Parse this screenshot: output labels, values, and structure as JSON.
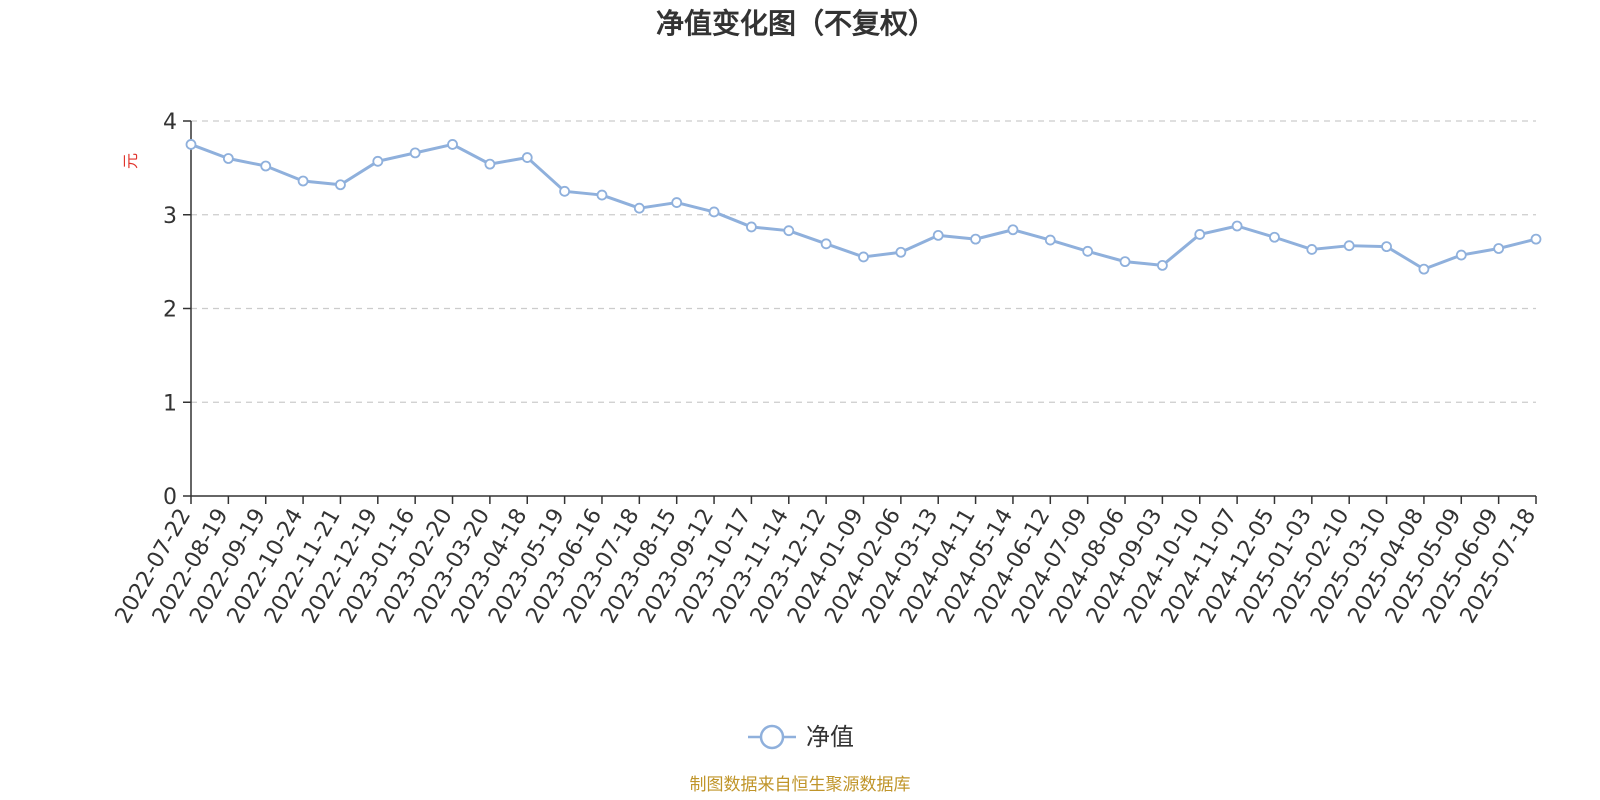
{
  "chart_data": {
    "type": "line",
    "title": "净值变化图（不复权）",
    "ylabel": "元",
    "ylim": [
      0,
      4
    ],
    "yticks": [
      "0",
      "1",
      "2",
      "3",
      "4"
    ],
    "grid": true,
    "legend_position": "bottom",
    "x": [
      "2022-07-22",
      "2022-08-19",
      "2022-09-19",
      "2022-10-24",
      "2022-11-21",
      "2022-12-19",
      "2023-01-16",
      "2023-02-20",
      "2023-03-20",
      "2023-04-18",
      "2023-05-19",
      "2023-06-16",
      "2023-07-18",
      "2023-08-15",
      "2023-09-12",
      "2023-10-17",
      "2023-11-14",
      "2023-12-12",
      "2024-01-09",
      "2024-02-06",
      "2024-03-13",
      "2024-04-11",
      "2024-05-14",
      "2024-06-12",
      "2024-07-09",
      "2024-08-06",
      "2024-09-03",
      "2024-10-10",
      "2024-11-07",
      "2024-12-05",
      "2025-01-03",
      "2025-02-10",
      "2025-03-10",
      "2025-04-08",
      "2025-05-09",
      "2025-06-09",
      "2025-07-18"
    ],
    "series": [
      {
        "name": "净值",
        "color": "#8fb0dc",
        "values": [
          3.75,
          3.6,
          3.52,
          3.36,
          3.32,
          3.57,
          3.66,
          3.75,
          3.54,
          3.61,
          3.25,
          3.21,
          3.07,
          3.13,
          3.03,
          2.87,
          2.83,
          2.69,
          2.55,
          2.6,
          2.78,
          2.74,
          2.84,
          2.73,
          2.61,
          2.5,
          2.46,
          2.79,
          2.88,
          2.76,
          2.63,
          2.67,
          2.66,
          2.42,
          2.57,
          2.64,
          2.74
        ]
      }
    ]
  },
  "legend": {
    "label": "净值"
  },
  "source": "制图数据来自恒生聚源数据库",
  "colors": {
    "line": "#8fb0dc",
    "ylabel": "#e0342c",
    "source": "#c0952a",
    "grid": "#cccccc",
    "axis": "#333333"
  }
}
